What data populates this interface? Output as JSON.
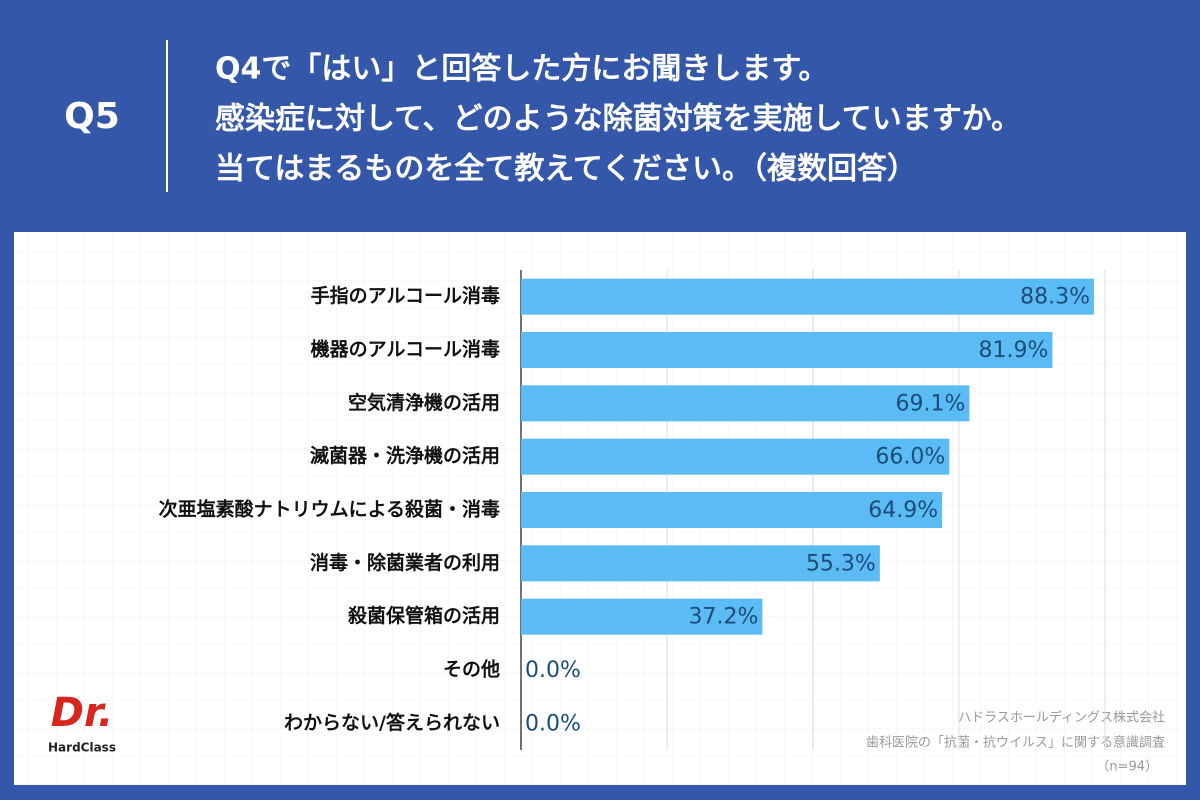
{
  "header": {
    "label": "Q5",
    "question": [
      "Q4で「はい」と回答した方にお聞きします。",
      "感染症に対して、どのような除菌対策を実施していますか。",
      "当てはまるものを全て教えてください。（複数回答）"
    ]
  },
  "chart_data": {
    "type": "barh",
    "categories": [
      "手指のアルコール消毒",
      "機器のアルコール消毒",
      "空気清浄機の活用",
      "滅菌器・洗浄機の活用",
      "次亜塩素酸ナトリウムによる殺菌・消毒",
      "消毒・除菌業者の利用",
      "殺菌保管箱の活用",
      "その他",
      "わからない/答えられない"
    ],
    "values": [
      88.3,
      81.9,
      69.1,
      66.0,
      64.9,
      55.3,
      37.2,
      0.0,
      0.0
    ],
    "value_labels": [
      "88.3%",
      "81.9%",
      "69.1%",
      "66.0%",
      "64.9%",
      "55.3%",
      "37.2%",
      "0.0%",
      "0.0%"
    ],
    "color": "#5bbcf5",
    "xlim": [
      0,
      90
    ],
    "xticks": [
      0,
      22.5,
      45,
      67.5,
      90
    ],
    "grid": true
  },
  "logo": {
    "top": "Dr.",
    "bottom": "HardClass"
  },
  "source": [
    "ハドラスホールディングス株式会社",
    "歯科医院の「抗菌・抗ウイルス」に関する意識調査",
    "（n=94）"
  ]
}
